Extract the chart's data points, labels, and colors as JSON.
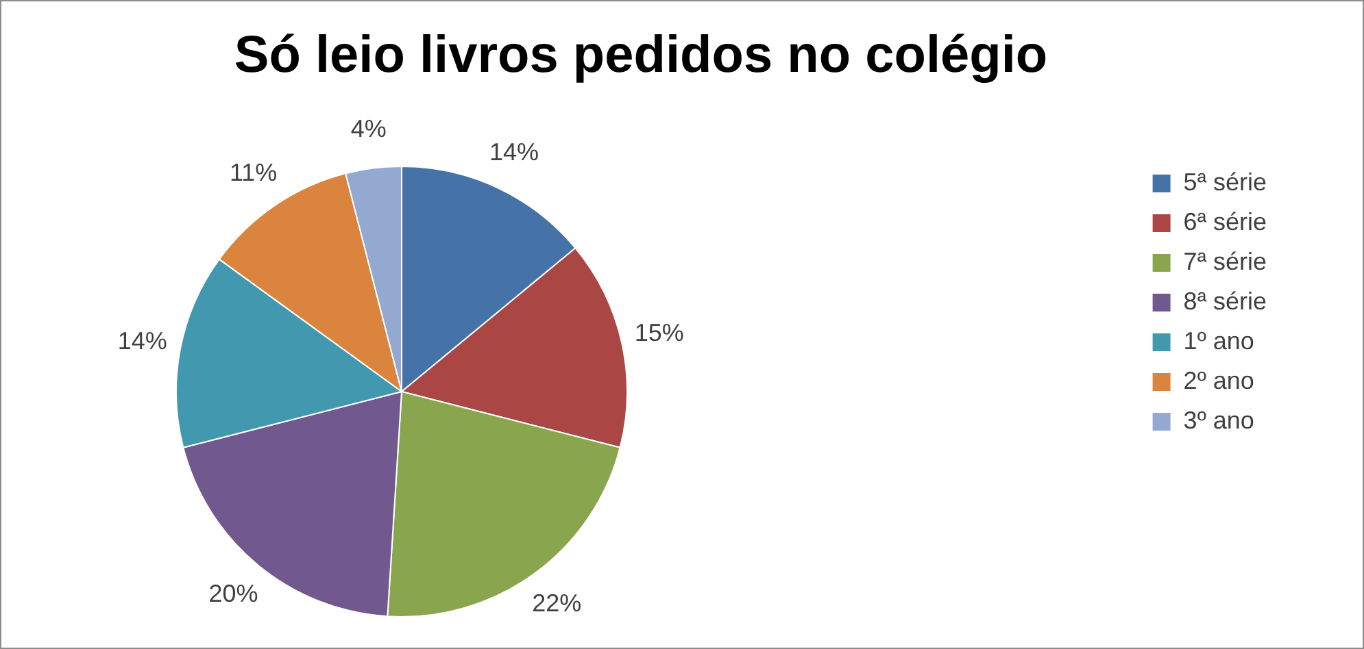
{
  "chart_data": {
    "type": "pie",
    "title": "Só leio livros pedidos no colégio",
    "categories": [
      "5ª série",
      "6ª série",
      "7ª série",
      "8ª série",
      "1º ano",
      "2º ano",
      "3º ano"
    ],
    "values": [
      14,
      15,
      22,
      20,
      14,
      11,
      4
    ],
    "colors": [
      "#4572a7",
      "#aa4643",
      "#89a54e",
      "#71588f",
      "#4198af",
      "#db843d",
      "#93a9cf"
    ],
    "value_labels": [
      "14%",
      "15%",
      "22%",
      "20%",
      "14%",
      "11%",
      "4%"
    ],
    "legend": "right"
  }
}
